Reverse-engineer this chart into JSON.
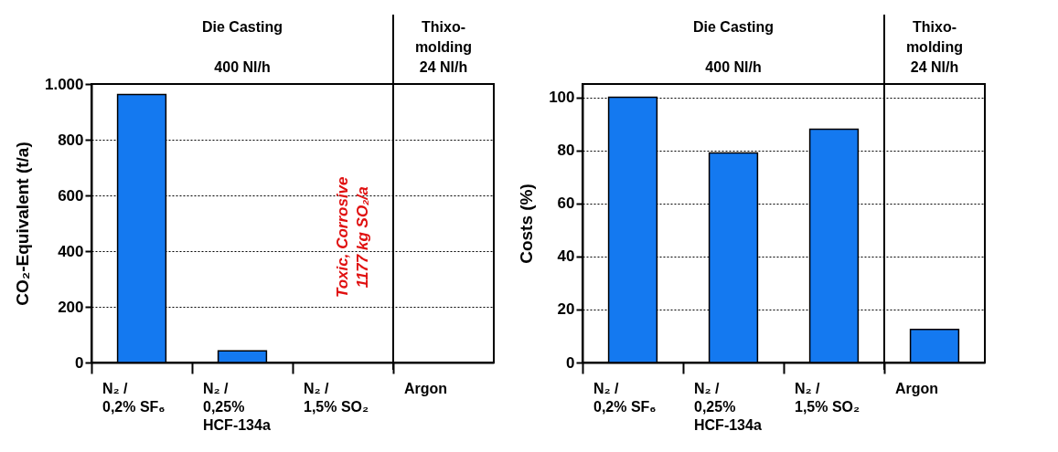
{
  "chart_data": [
    {
      "type": "bar",
      "ylabel": "CO₂-Equivalent (t/a)",
      "categories": [
        "N₂ /\n0,2% SF₆",
        "N₂ /\n0,25%\nHCF-134a",
        "N₂ /\n1,5% SO₂",
        "Argon"
      ],
      "values": [
        962,
        42,
        null,
        null
      ],
      "color": "#1479f0",
      "ylim": [
        0,
        1000
      ],
      "yticks": [
        0,
        200,
        400,
        600,
        800,
        {
          "value": 1000,
          "label": "1.000"
        }
      ],
      "grid": "y",
      "ref_lines": [
        {
          "axis": "x",
          "value": "Argon"
        }
      ],
      "annotations": [
        "Die Casting",
        "400 Nl/h",
        "Thixo-\nmolding\n24 Nl/h",
        "Toxic, Corrosive\n1177 kg SO₂/a"
      ]
    },
    {
      "type": "bar",
      "ylabel": "Costs (%)",
      "categories": [
        "N₂ /\n0,2% SF₆",
        "N₂ /\n0,25%\nHCF-134a",
        "N₂ /\n1,5% SO₂",
        "Argon"
      ],
      "values": [
        100,
        79,
        88,
        12.5
      ],
      "color": "#1479f0",
      "ylim": [
        0,
        105
      ],
      "yticks": [
        0,
        20,
        40,
        60,
        80,
        100
      ],
      "grid": "y",
      "ref_lines": [
        {
          "axis": "x",
          "value": "Argon"
        }
      ],
      "annotations": [
        "Die Casting",
        "400 Nl/h",
        "Thixo-\nmolding\n24 Nl/h"
      ]
    }
  ]
}
